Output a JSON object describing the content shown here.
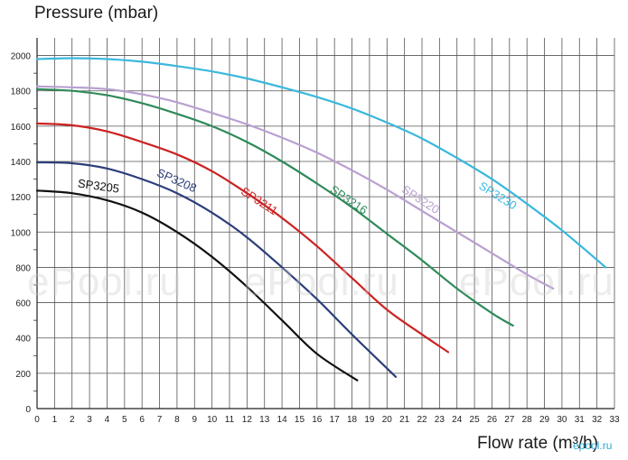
{
  "chart_data": {
    "type": "line",
    "title": "",
    "ylabel": "Pressure (mbar)",
    "xlabel": "Flow rate (m³/h)",
    "xlim": [
      0,
      33
    ],
    "ylim": [
      0,
      2100
    ],
    "x_ticks": [
      0,
      1,
      2,
      3,
      4,
      5,
      6,
      7,
      8,
      9,
      10,
      11,
      12,
      13,
      14,
      15,
      16,
      17,
      18,
      19,
      20,
      21,
      22,
      23,
      24,
      25,
      26,
      27,
      28,
      29,
      30,
      31,
      32,
      33
    ],
    "y_ticks": [
      0,
      200,
      400,
      600,
      800,
      1000,
      1200,
      1400,
      1600,
      1800,
      2000
    ],
    "grid": true,
    "series": [
      {
        "name": "SP3205",
        "color": "#111111",
        "x": [
          0,
          2,
          4,
          6,
          8,
          10,
          12,
          14,
          16,
          18.3
        ],
        "y": [
          1235,
          1220,
          1180,
          1110,
          1000,
          860,
          690,
          500,
          310,
          160
        ]
      },
      {
        "name": "SP3208",
        "color": "#2c3e7a",
        "x": [
          0,
          2,
          4,
          6,
          8,
          10,
          12,
          14,
          16,
          18,
          20.5
        ],
        "y": [
          1395,
          1390,
          1360,
          1300,
          1220,
          1110,
          970,
          800,
          620,
          420,
          180
        ]
      },
      {
        "name": "SP3211",
        "color": "#cc2222",
        "x": [
          0,
          2,
          4,
          6,
          8,
          10,
          12,
          14,
          16,
          18,
          20,
          22,
          23.5
        ],
        "y": [
          1615,
          1605,
          1570,
          1510,
          1440,
          1345,
          1220,
          1080,
          920,
          740,
          560,
          420,
          320
        ]
      },
      {
        "name": "SP3216",
        "color": "#2e8a5a",
        "x": [
          0,
          2,
          4,
          6,
          8,
          10,
          12,
          14,
          16,
          18,
          20,
          22,
          24,
          26,
          27.2
        ],
        "y": [
          1810,
          1800,
          1775,
          1730,
          1670,
          1600,
          1510,
          1400,
          1275,
          1140,
          990,
          840,
          680,
          540,
          470
        ]
      },
      {
        "name": "SP3220",
        "color": "#b8a0d0",
        "x": [
          0,
          2,
          4,
          6,
          8,
          10,
          12,
          14,
          16,
          18,
          20,
          22,
          24,
          26,
          28,
          29.5
        ],
        "y": [
          1825,
          1820,
          1810,
          1780,
          1735,
          1675,
          1610,
          1535,
          1450,
          1350,
          1240,
          1120,
          1000,
          880,
          760,
          680
        ]
      },
      {
        "name": "SP3230",
        "color": "#3ab8dd",
        "x": [
          0,
          2,
          4,
          6,
          8,
          10,
          12,
          14,
          16,
          18,
          20,
          22,
          24,
          26,
          28,
          30,
          32.5
        ],
        "y": [
          1980,
          1985,
          1980,
          1965,
          1940,
          1910,
          1870,
          1820,
          1765,
          1700,
          1620,
          1530,
          1420,
          1300,
          1160,
          1010,
          800
        ]
      }
    ],
    "series_labels": [
      "SP3205",
      "SP3208",
      "SP3211",
      "SP3216",
      "SP3220",
      "SP3230"
    ]
  },
  "watermark": "ePool.ru",
  "logo": "epool.ru"
}
